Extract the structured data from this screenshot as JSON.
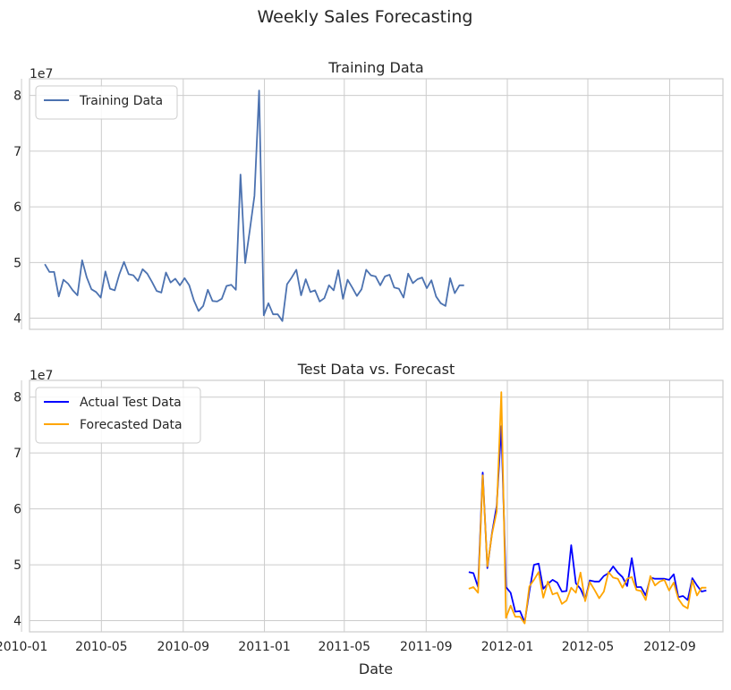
{
  "figure": {
    "suptitle": "Weekly Sales Forecasting"
  },
  "chart_data": [
    {
      "type": "line",
      "title": "Training Data",
      "xlabel": "",
      "ylabel": "",
      "y_exponent_label": "1e7",
      "ylim": [
        3.8,
        8.3
      ],
      "xlim": [
        "2010-01-13",
        "2012-11-20"
      ],
      "yticks": [
        4,
        5,
        6,
        7,
        8
      ],
      "ytick_labels": [
        "4",
        "5",
        "6",
        "7",
        "8"
      ],
      "x_tick_dates": [
        "2010-01-01",
        "2010-05-01",
        "2010-09-01",
        "2011-01-01",
        "2011-05-01",
        "2011-09-01",
        "2012-01-01",
        "2012-05-01",
        "2012-09-01"
      ],
      "xtick_labels": [],
      "grid": true,
      "legend_position": "upper left",
      "legend": [
        "Training Data"
      ],
      "series": [
        {
          "name": "Training Data",
          "color": "#4c72b0",
          "x_start": "2010-02-05",
          "interval_days": 7,
          "values": [
            4.97,
            4.83,
            4.83,
            4.39,
            4.69,
            4.62,
            4.5,
            4.41,
            5.04,
            4.73,
            4.52,
            4.47,
            4.37,
            4.84,
            4.53,
            4.5,
            4.79,
            5.01,
            4.79,
            4.77,
            4.67,
            4.88,
            4.8,
            4.65,
            4.49,
            4.46,
            4.82,
            4.64,
            4.71,
            4.59,
            4.72,
            4.59,
            4.32,
            4.13,
            4.22,
            4.51,
            4.31,
            4.3,
            4.35,
            4.58,
            4.6,
            4.51,
            6.58,
            4.99,
            5.58,
            6.2,
            8.09,
            4.05,
            4.27,
            4.07,
            4.07,
            3.95,
            4.61,
            4.73,
            4.87,
            4.41,
            4.7,
            4.47,
            4.5,
            4.3,
            4.36,
            4.59,
            4.5,
            4.86,
            4.35,
            4.69,
            4.55,
            4.4,
            4.52,
            4.87,
            4.77,
            4.75,
            4.59,
            4.75,
            4.78,
            4.55,
            4.53,
            4.37,
            4.8,
            4.63,
            4.7,
            4.73,
            4.54,
            4.68,
            4.39,
            4.27,
            4.22,
            4.72,
            4.45,
            4.59,
            4.59
          ]
        }
      ]
    },
    {
      "type": "line",
      "title": "Test Data vs. Forecast",
      "xlabel": "Date",
      "ylabel": "",
      "y_exponent_label": "1e7",
      "ylim": [
        3.8,
        8.3
      ],
      "xlim": [
        "2010-01-13",
        "2012-11-20"
      ],
      "yticks": [
        4,
        5,
        6,
        7,
        8
      ],
      "ytick_labels": [
        "4",
        "5",
        "6",
        "7",
        "8"
      ],
      "x_tick_dates": [
        "2010-01-01",
        "2010-05-01",
        "2010-09-01",
        "2011-01-01",
        "2011-05-01",
        "2011-09-01",
        "2012-01-01",
        "2012-05-01",
        "2012-09-01"
      ],
      "xtick_labels": [
        "2010-01",
        "2010-05",
        "2010-09",
        "2011-01",
        "2011-05",
        "2011-09",
        "2012-01",
        "2012-05",
        "2012-09"
      ],
      "grid": true,
      "legend_position": "upper left",
      "legend": [
        "Actual Test Data",
        "Forecasted Data"
      ],
      "series": [
        {
          "name": "Actual Test Data",
          "color": "#0000ff",
          "x_start": "2011-11-04",
          "interval_days": 7,
          "values": [
            4.87,
            4.85,
            4.6,
            6.65,
            4.94,
            5.57,
            6.05,
            7.48,
            4.6,
            4.5,
            4.16,
            4.17,
            3.97,
            4.52,
            5.0,
            5.02,
            4.57,
            4.66,
            4.73,
            4.68,
            4.52,
            4.53,
            5.35,
            4.67,
            4.57,
            4.38,
            4.72,
            4.7,
            4.7,
            4.8,
            4.85,
            4.97,
            4.86,
            4.78,
            4.62,
            5.12,
            4.6,
            4.6,
            4.45,
            4.77,
            4.75,
            4.75,
            4.75,
            4.73,
            4.83,
            4.42,
            4.44,
            4.37,
            4.76,
            4.63,
            4.52,
            4.54
          ]
        },
        {
          "name": "Forecasted Data",
          "color": "#ffa500",
          "x_start": "2011-11-04",
          "interval_days": 7,
          "values": [
            4.57,
            4.6,
            4.5,
            6.6,
            4.97,
            5.55,
            5.95,
            8.09,
            4.05,
            4.27,
            4.07,
            4.07,
            3.95,
            4.61,
            4.73,
            4.87,
            4.41,
            4.7,
            4.47,
            4.5,
            4.3,
            4.36,
            4.59,
            4.5,
            4.86,
            4.35,
            4.69,
            4.55,
            4.4,
            4.52,
            4.87,
            4.77,
            4.75,
            4.59,
            4.75,
            4.78,
            4.55,
            4.53,
            4.37,
            4.8,
            4.63,
            4.7,
            4.73,
            4.54,
            4.68,
            4.39,
            4.27,
            4.22,
            4.72,
            4.45,
            4.59,
            4.59
          ]
        }
      ]
    }
  ]
}
